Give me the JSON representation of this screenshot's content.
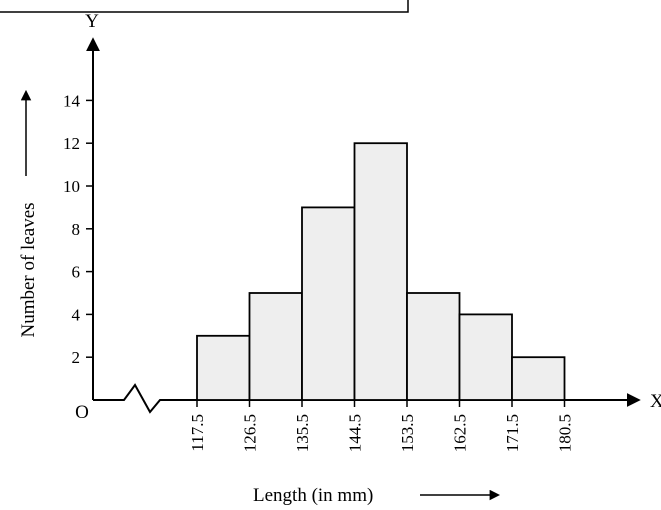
{
  "chart_data": {
    "type": "bar",
    "title": "",
    "xlabel": "Length (in mm)",
    "ylabel": "Number of leaves",
    "x_axis_letter": "X",
    "y_axis_letter": "Y",
    "origin_label": "O",
    "bin_edges": [
      117.5,
      126.5,
      135.5,
      144.5,
      153.5,
      162.5,
      171.5,
      180.5
    ],
    "bin_edge_labels": [
      "117.5",
      "126.5",
      "135.5",
      "144.5",
      "153.5",
      "162.5",
      "171.5",
      "180.5"
    ],
    "values": [
      3,
      5,
      9,
      12,
      5,
      4,
      2
    ],
    "y_ticks": [
      2,
      4,
      6,
      8,
      10,
      12,
      14
    ],
    "ylim": [
      0,
      14
    ],
    "x_axis_break": true,
    "grid": false,
    "bar_color": "#eeeeee"
  }
}
